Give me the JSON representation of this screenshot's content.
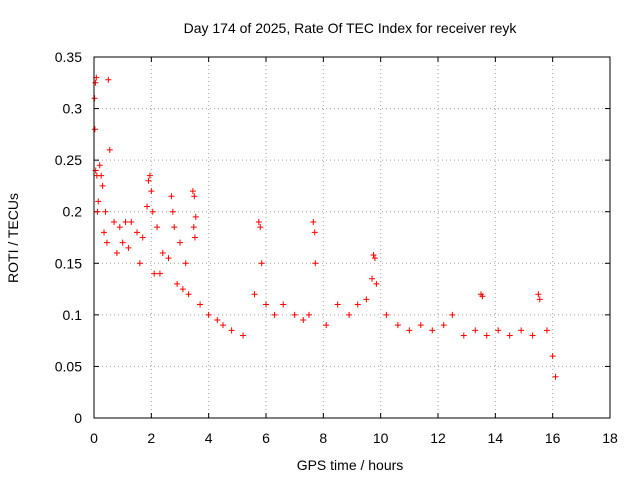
{
  "chart_data": {
    "type": "scatter",
    "title": "Day 174 of 2025, Rate Of TEC Index for receiver reyk",
    "xlabel": "GPS time / hours",
    "ylabel": "ROTI / TECUs",
    "xlim": [
      0,
      18
    ],
    "ylim": [
      0,
      0.35
    ],
    "x_ticks": [
      0,
      2,
      4,
      6,
      8,
      10,
      12,
      14,
      16,
      18
    ],
    "x_tick_labels": [
      "0",
      "2",
      "4",
      "6",
      "8",
      "10",
      "12",
      "14",
      "16",
      "18"
    ],
    "y_ticks": [
      0,
      0.05,
      0.1,
      0.15,
      0.2,
      0.25,
      0.3,
      0.35
    ],
    "y_tick_labels": [
      "0",
      "0.05",
      "0.1",
      "0.15",
      "0.2",
      "0.25",
      "0.3",
      "0.35"
    ],
    "grid": true,
    "marker": "+",
    "color": "#ff0000",
    "series": [
      {
        "name": "ROTI",
        "points": [
          [
            0.02,
            0.31
          ],
          [
            0.05,
            0.325
          ],
          [
            0.08,
            0.33
          ],
          [
            0.03,
            0.28
          ],
          [
            0.06,
            0.24
          ],
          [
            0.1,
            0.235
          ],
          [
            0.5,
            0.328
          ],
          [
            0.55,
            0.26
          ],
          [
            0.2,
            0.245
          ],
          [
            0.25,
            0.235
          ],
          [
            0.3,
            0.225
          ],
          [
            0.15,
            0.21
          ],
          [
            0.12,
            0.2
          ],
          [
            0.4,
            0.2
          ],
          [
            0.7,
            0.19
          ],
          [
            0.9,
            0.185
          ],
          [
            1.1,
            0.19
          ],
          [
            1.3,
            0.19
          ],
          [
            1.5,
            0.18
          ],
          [
            1.7,
            0.175
          ],
          [
            1.9,
            0.23
          ],
          [
            1.95,
            0.235
          ],
          [
            2.0,
            0.22
          ],
          [
            2.05,
            0.2
          ],
          [
            1.85,
            0.205
          ],
          [
            2.2,
            0.185
          ],
          [
            2.4,
            0.16
          ],
          [
            2.6,
            0.155
          ],
          [
            2.7,
            0.215
          ],
          [
            2.75,
            0.2
          ],
          [
            2.8,
            0.185
          ],
          [
            3.0,
            0.17
          ],
          [
            3.2,
            0.15
          ],
          [
            3.45,
            0.22
          ],
          [
            3.5,
            0.215
          ],
          [
            3.55,
            0.195
          ],
          [
            3.48,
            0.185
          ],
          [
            3.52,
            0.175
          ],
          [
            5.75,
            0.19
          ],
          [
            5.8,
            0.185
          ],
          [
            5.85,
            0.15
          ],
          [
            7.65,
            0.19
          ],
          [
            7.7,
            0.18
          ],
          [
            7.72,
            0.15
          ],
          [
            9.75,
            0.158
          ],
          [
            9.8,
            0.155
          ],
          [
            9.85,
            0.13
          ],
          [
            9.7,
            0.135
          ],
          [
            13.5,
            0.12
          ],
          [
            13.55,
            0.118
          ],
          [
            15.5,
            0.12
          ],
          [
            15.55,
            0.115
          ],
          [
            2.1,
            0.14
          ],
          [
            1.0,
            0.17
          ],
          [
            0.8,
            0.16
          ],
          [
            0.35,
            0.18
          ],
          [
            0.45,
            0.17
          ],
          [
            1.2,
            0.165
          ],
          [
            1.6,
            0.15
          ],
          [
            2.3,
            0.14
          ],
          [
            2.9,
            0.13
          ],
          [
            3.1,
            0.125
          ],
          [
            3.3,
            0.12
          ],
          [
            3.7,
            0.11
          ],
          [
            4.0,
            0.1
          ],
          [
            4.3,
            0.095
          ],
          [
            4.5,
            0.09
          ],
          [
            4.8,
            0.085
          ],
          [
            5.2,
            0.08
          ],
          [
            5.6,
            0.12
          ],
          [
            6.0,
            0.11
          ],
          [
            6.3,
            0.1
          ],
          [
            6.6,
            0.11
          ],
          [
            7.0,
            0.1
          ],
          [
            7.3,
            0.095
          ],
          [
            7.5,
            0.1
          ],
          [
            8.1,
            0.09
          ],
          [
            8.5,
            0.11
          ],
          [
            8.9,
            0.1
          ],
          [
            9.2,
            0.11
          ],
          [
            9.5,
            0.115
          ],
          [
            10.2,
            0.1
          ],
          [
            10.6,
            0.09
          ],
          [
            11.0,
            0.085
          ],
          [
            11.4,
            0.09
          ],
          [
            11.8,
            0.085
          ],
          [
            12.2,
            0.09
          ],
          [
            12.5,
            0.1
          ],
          [
            12.9,
            0.08
          ],
          [
            13.3,
            0.085
          ],
          [
            13.7,
            0.08
          ],
          [
            14.1,
            0.085
          ],
          [
            14.5,
            0.08
          ],
          [
            14.9,
            0.085
          ],
          [
            15.3,
            0.08
          ],
          [
            15.8,
            0.085
          ],
          [
            16.0,
            0.06
          ],
          [
            16.1,
            0.04
          ]
        ]
      }
    ]
  }
}
